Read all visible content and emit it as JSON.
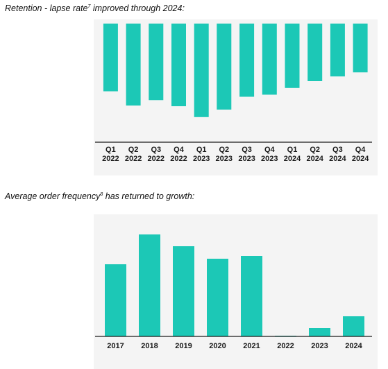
{
  "colors": {
    "bar": "#1cc8b6",
    "axis": "#1a1a1a",
    "panel": "#f4f4f4"
  },
  "chart_data": [
    {
      "type": "bar",
      "title_pre": "Retention - lapse rate",
      "title_sup": "7",
      "title_post": " improved through 2024:",
      "direction": "downward",
      "grid": false,
      "categories": [
        {
          "q": "Q1",
          "y": "2022"
        },
        {
          "q": "Q2",
          "y": "2022"
        },
        {
          "q": "Q3",
          "y": "2022"
        },
        {
          "q": "Q4",
          "y": "2022"
        },
        {
          "q": "Q1",
          "y": "2023"
        },
        {
          "q": "Q2",
          "y": "2023"
        },
        {
          "q": "Q3",
          "y": "2023"
        },
        {
          "q": "Q4",
          "y": "2023"
        },
        {
          "q": "Q1",
          "y": "2024"
        },
        {
          "q": "Q2",
          "y": "2024"
        },
        {
          "q": "Q3",
          "y": "2024"
        },
        {
          "q": "Q4",
          "y": "2024"
        }
      ],
      "values": [
        100,
        121,
        113,
        122,
        138,
        127,
        108,
        105,
        95,
        85,
        78,
        72
      ],
      "ylim": [
        0,
        170
      ]
    },
    {
      "type": "bar",
      "title_pre": "Average order frequency",
      "title_sup": "8",
      "title_post": " has returned to growth:",
      "grid": false,
      "categories": [
        "2017",
        "2018",
        "2019",
        "2020",
        "2021",
        "2022",
        "2023",
        "2024"
      ],
      "values": [
        104,
        147,
        130,
        112,
        116,
        1,
        12,
        29
      ],
      "ylim": [
        0,
        160
      ]
    }
  ]
}
